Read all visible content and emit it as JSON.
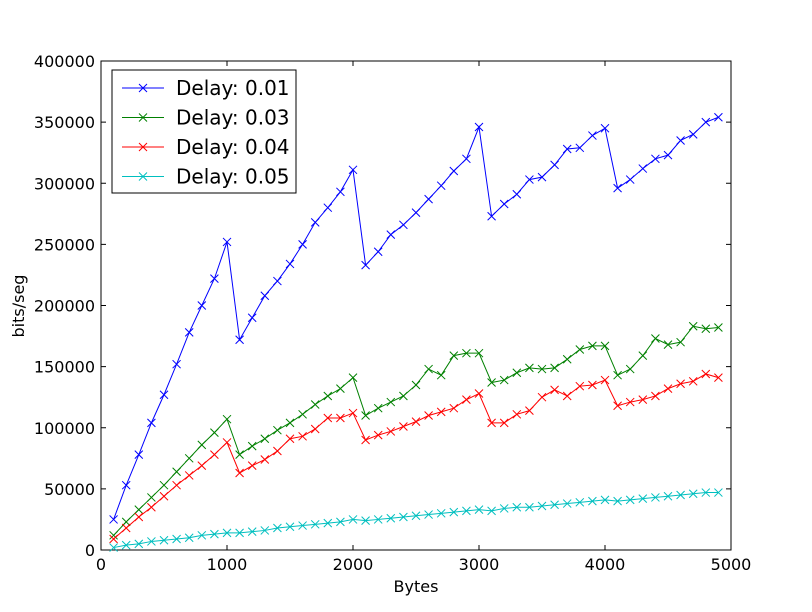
{
  "chart_data": {
    "type": "line",
    "xlabel": "Bytes",
    "ylabel": "bits/seg",
    "xlim": [
      0,
      5000
    ],
    "ylim": [
      0,
      400000
    ],
    "xticks": [
      0,
      1000,
      2000,
      3000,
      4000,
      5000
    ],
    "yticks": [
      0,
      50000,
      100000,
      150000,
      200000,
      250000,
      300000,
      350000,
      400000
    ],
    "xtick_labels": [
      "0",
      "1000",
      "2000",
      "3000",
      "4000",
      "5000"
    ],
    "ytick_labels": [
      "0",
      "50000",
      "100000",
      "150000",
      "200000",
      "250000",
      "300000",
      "350000",
      "400000"
    ],
    "grid": false,
    "legend_position": "top-left",
    "marker": "x",
    "x": [
      100,
      200,
      300,
      400,
      500,
      600,
      700,
      800,
      900,
      1000,
      1100,
      1200,
      1300,
      1400,
      1500,
      1600,
      1700,
      1800,
      1900,
      2000,
      2100,
      2200,
      2300,
      2400,
      2500,
      2600,
      2700,
      2800,
      2900,
      3000,
      3100,
      3200,
      3300,
      3400,
      3500,
      3600,
      3700,
      3800,
      3900,
      4000,
      4100,
      4200,
      4300,
      4400,
      4500,
      4600,
      4700,
      4800,
      4900
    ],
    "series": [
      {
        "name": "Delay: 0.01",
        "color": "#0000ff",
        "values": [
          25000,
          53000,
          78000,
          104000,
          127000,
          152000,
          178000,
          200000,
          222000,
          252000,
          172000,
          190000,
          208000,
          220000,
          234000,
          250000,
          268000,
          280000,
          293000,
          311000,
          233000,
          244000,
          258000,
          266000,
          276000,
          287000,
          298000,
          310000,
          320000,
          346000,
          273000,
          283000,
          291000,
          303000,
          305000,
          315000,
          328000,
          329000,
          339000,
          345000,
          296000,
          303000,
          312000,
          320000,
          323000,
          335000,
          340000,
          350000,
          354000
        ]
      },
      {
        "name": "Delay: 0.03",
        "color": "#008000",
        "values": [
          12000,
          23000,
          33000,
          43000,
          53000,
          64000,
          75000,
          86000,
          96000,
          107000,
          78000,
          85000,
          91000,
          98000,
          104000,
          111000,
          119000,
          126000,
          132000,
          141000,
          110000,
          116000,
          121000,
          126000,
          135000,
          148000,
          143000,
          159000,
          161000,
          161000,
          137000,
          139000,
          145000,
          149000,
          148000,
          149000,
          156000,
          164000,
          167000,
          167000,
          143000,
          148000,
          159000,
          173000,
          168000,
          170000,
          183000,
          181000,
          182000
        ]
      },
      {
        "name": "Delay: 0.04",
        "color": "#ff0000",
        "values": [
          9000,
          18000,
          27000,
          35000,
          44000,
          53000,
          61000,
          69000,
          78000,
          88000,
          63000,
          69000,
          74000,
          81000,
          91000,
          93000,
          99000,
          108000,
          108000,
          112000,
          90000,
          94000,
          97000,
          101000,
          105000,
          110000,
          113000,
          116000,
          123000,
          128000,
          104000,
          104000,
          111000,
          114000,
          125000,
          131000,
          126000,
          134000,
          135000,
          139000,
          118000,
          121000,
          123000,
          126000,
          132000,
          136000,
          138000,
          144000,
          141000
        ]
      },
      {
        "name": "Delay: 0.05",
        "color": "#00bfbf",
        "values": [
          2000,
          4000,
          5000,
          7000,
          8000,
          9000,
          10000,
          12000,
          13000,
          14000,
          14000,
          15000,
          16000,
          18000,
          19000,
          20000,
          21000,
          22000,
          23000,
          25000,
          24000,
          25000,
          26000,
          27000,
          28000,
          29000,
          30000,
          31000,
          32000,
          33000,
          32000,
          34000,
          35000,
          35000,
          36000,
          37000,
          38000,
          39000,
          40000,
          41000,
          40000,
          41000,
          42000,
          43000,
          44000,
          45000,
          46000,
          47000,
          47000
        ]
      }
    ]
  }
}
